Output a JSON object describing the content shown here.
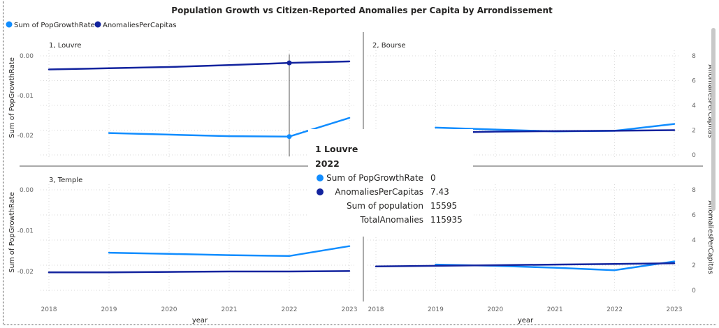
{
  "colors": {
    "pop": "#118dff",
    "anom": "#12239e"
  },
  "chart_data": {
    "type": "line",
    "title": "Population Growth vs Citizen-Reported Anomalies per Capita by Arrondissement",
    "legend": {
      "placement": "top-left",
      "items": [
        {
          "label": "Sum of PopGrowthRate",
          "color": "#118dff"
        },
        {
          "label": "AnomaliesPerCapitas",
          "color": "#12239e"
        }
      ]
    },
    "xlabel": "year",
    "y_left_label": "Sum of PopGrowthRate",
    "y_right_label": "AnomaliesPerCapitas",
    "x_ticks": [
      "2018",
      "2019",
      "2020",
      "2021",
      "2022",
      "2023"
    ],
    "y_left_ticks": [
      "0.00",
      "-0.01",
      "-0.02"
    ],
    "y_left_range": [
      -0.025,
      0.0
    ],
    "y_right_ticks": [
      "0",
      "2",
      "4",
      "6",
      "8"
    ],
    "y_right_range": [
      0,
      8
    ],
    "grid": true,
    "panels": [
      {
        "name": "1, Louvre",
        "series": [
          {
            "name": "Sum of PopGrowthRate",
            "x": [
              2019,
              2020,
              2021,
              2022,
              2023
            ],
            "y": [
              -0.0194,
              -0.0198,
              -0.0202,
              -0.0203,
              -0.0156
            ]
          },
          {
            "name": "AnomaliesPerCapitas",
            "x": [
              2018,
              2019,
              2020,
              2021,
              2022,
              2023
            ],
            "y": [
              6.9,
              7.0,
              7.1,
              7.25,
              7.43,
              7.55
            ]
          }
        ],
        "highlight": {
          "year": 2022,
          "pop": -0.0203,
          "anom": 7.43
        }
      },
      {
        "name": "2, Bourse",
        "series": [
          {
            "name": "Sum of PopGrowthRate",
            "x": [
              2019,
              2020,
              2021,
              2022,
              2023
            ],
            "y": [
              2.2,
              2.05,
              1.9,
              1.95,
              2.5
            ]
          },
          {
            "name": "AnomaliesPerCapitas",
            "x": [
              2019.6,
              2020,
              2021,
              2022,
              2023
            ],
            "y": [
              1.85,
              1.88,
              1.92,
              1.95,
              2.0
            ]
          }
        ]
      },
      {
        "name": "3, Temple",
        "series": [
          {
            "name": "Sum of PopGrowthRate",
            "x": [
              2019,
              2020,
              2021,
              2022,
              2023
            ],
            "y": [
              -0.0154,
              -0.0157,
              -0.016,
              -0.0162,
              -0.0138
            ]
          },
          {
            "name": "AnomaliesPerCapitas",
            "x": [
              2018,
              2019,
              2020,
              2021,
              2022,
              2023
            ],
            "y": [
              -0.0202,
              -0.0202,
              -0.0201,
              -0.02,
              -0.02,
              -0.0199
            ]
          }
        ]
      },
      {
        "name": "",
        "series": [
          {
            "name": "Sum of PopGrowthRate",
            "x": [
              2019,
              2020,
              2021,
              2022,
              2023
            ],
            "y": [
              2.05,
              1.95,
              1.8,
              1.6,
              2.3
            ]
          },
          {
            "name": "AnomaliesPerCapitas",
            "x": [
              2018,
              2019,
              2020,
              2021,
              2022,
              2023
            ],
            "y": [
              1.9,
              1.95,
              2.0,
              2.05,
              2.1,
              2.15
            ]
          }
        ]
      }
    ]
  },
  "tooltip": {
    "title1": "1 Louvre",
    "title2": "2022",
    "rows": [
      {
        "label": "Sum of PopGrowthRate",
        "value": "0",
        "color": "#118dff"
      },
      {
        "label": "AnomaliesPerCapitas",
        "value": "7.43",
        "color": "#12239e"
      },
      {
        "label": "Sum of population",
        "value": "15595"
      },
      {
        "label": "TotalAnomalies",
        "value": "115935"
      }
    ]
  }
}
